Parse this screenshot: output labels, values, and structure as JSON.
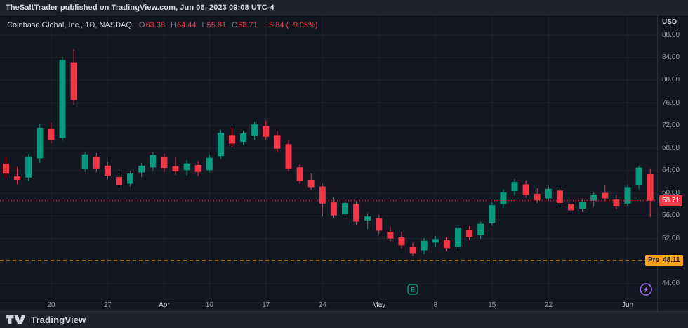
{
  "topbar": {
    "text": "TheSaltTrader published on TradingView.com, Jun 06, 2023 09:08 UTC-4"
  },
  "legend": {
    "symbol": "Coinbase Global, Inc., 1D, NASDAQ",
    "o_label": "O",
    "o_value": "63.38",
    "h_label": "H",
    "h_value": "64.44",
    "l_label": "L",
    "l_value": "55.81",
    "c_label": "C",
    "c_value": "58.71",
    "change": "−5.84 (−9.05%)"
  },
  "price_axis": {
    "currency": "USD",
    "tick_labels": [
      {
        "price": 88,
        "label": "88.00"
      },
      {
        "price": 84,
        "label": "84.00"
      },
      {
        "price": 80,
        "label": "80.00"
      },
      {
        "price": 76,
        "label": "76.00"
      },
      {
        "price": 72,
        "label": "72.00"
      },
      {
        "price": 68,
        "label": "68.00"
      },
      {
        "price": 64,
        "label": "64.00"
      },
      {
        "price": 60,
        "label": "60.00"
      },
      {
        "price": 56,
        "label": "56.00"
      },
      {
        "price": 52,
        "label": "52.00"
      },
      {
        "price": 44,
        "label": "44.00"
      }
    ],
    "last_badge": {
      "value": "58.71",
      "color": "#f23645"
    },
    "pre_badge": {
      "label": "Pre",
      "value": "48.11",
      "color": "#f89e13"
    }
  },
  "time_axis": {
    "ticks": [
      {
        "i": 4,
        "label": "20",
        "major": false
      },
      {
        "i": 9,
        "label": "27",
        "major": false
      },
      {
        "i": 14,
        "label": "Apr",
        "major": true
      },
      {
        "i": 18,
        "label": "10",
        "major": false
      },
      {
        "i": 23,
        "label": "17",
        "major": false
      },
      {
        "i": 28,
        "label": "24",
        "major": false
      },
      {
        "i": 33,
        "label": "May",
        "major": true
      },
      {
        "i": 38,
        "label": "8",
        "major": false
      },
      {
        "i": 43,
        "label": "15",
        "major": false
      },
      {
        "i": 48,
        "label": "22",
        "major": false
      },
      {
        "i": 55,
        "label": "Jun",
        "major": true
      }
    ]
  },
  "markers": {
    "earnings": {
      "label": "E",
      "candle_index": 36,
      "color": "#089981"
    },
    "idea": {
      "icon": "lightning-icon",
      "candle_index": 57,
      "color": "#a970ff"
    }
  },
  "footer": {
    "brand": "TradingView"
  },
  "chart_data": {
    "type": "candlestick",
    "title": "Coinbase Global, Inc., 1D, NASDAQ",
    "ylabel": "USD",
    "ylim": [
      44,
      88
    ],
    "grid_step": 4,
    "up_color": "#089981",
    "down_color": "#f23645",
    "last_close_line": 58.71,
    "premarket_line": 48.11,
    "candles": [
      {
        "d": "14 Mar",
        "o": 65.2,
        "h": 66.4,
        "l": 62.7,
        "c": 63.5
      },
      {
        "d": "15 Mar",
        "o": 63.0,
        "h": 64.7,
        "l": 61.6,
        "c": 62.4
      },
      {
        "d": "16 Mar",
        "o": 62.8,
        "h": 67.0,
        "l": 62.2,
        "c": 66.5
      },
      {
        "d": "17 Mar",
        "o": 66.2,
        "h": 72.3,
        "l": 65.4,
        "c": 71.6
      },
      {
        "d": "20 Mar",
        "o": 71.4,
        "h": 72.5,
        "l": 68.8,
        "c": 69.4
      },
      {
        "d": "21 Mar",
        "o": 69.8,
        "h": 84.2,
        "l": 69.3,
        "c": 83.6
      },
      {
        "d": "22 Mar",
        "o": 83.2,
        "h": 85.5,
        "l": 75.6,
        "c": 76.5
      },
      {
        "d": "23 Mar",
        "o": 64.3,
        "h": 67.4,
        "l": 63.8,
        "c": 66.9
      },
      {
        "d": "24 Mar",
        "o": 66.5,
        "h": 67.1,
        "l": 63.7,
        "c": 64.4
      },
      {
        "d": "27 Mar",
        "o": 64.9,
        "h": 65.6,
        "l": 62.5,
        "c": 63.1
      },
      {
        "d": "28 Mar",
        "o": 62.9,
        "h": 63.6,
        "l": 60.8,
        "c": 61.4
      },
      {
        "d": "29 Mar",
        "o": 61.7,
        "h": 64.0,
        "l": 61.2,
        "c": 63.5
      },
      {
        "d": "30 Mar",
        "o": 63.7,
        "h": 65.4,
        "l": 62.9,
        "c": 64.9
      },
      {
        "d": "31 Mar",
        "o": 64.6,
        "h": 67.3,
        "l": 64.1,
        "c": 66.8
      },
      {
        "d": "3 Apr",
        "o": 66.4,
        "h": 67.0,
        "l": 63.8,
        "c": 64.5
      },
      {
        "d": "4 Apr",
        "o": 64.8,
        "h": 66.4,
        "l": 63.3,
        "c": 63.9
      },
      {
        "d": "5 Apr",
        "o": 64.1,
        "h": 65.9,
        "l": 63.2,
        "c": 65.3
      },
      {
        "d": "6 Apr",
        "o": 65.0,
        "h": 65.7,
        "l": 63.1,
        "c": 63.8
      },
      {
        "d": "10 Apr",
        "o": 64.1,
        "h": 66.8,
        "l": 63.7,
        "c": 66.3
      },
      {
        "d": "11 Apr",
        "o": 66.6,
        "h": 71.2,
        "l": 66.1,
        "c": 70.7
      },
      {
        "d": "12 Apr",
        "o": 70.3,
        "h": 71.6,
        "l": 68.2,
        "c": 68.8
      },
      {
        "d": "13 Apr",
        "o": 69.1,
        "h": 71.1,
        "l": 68.5,
        "c": 70.6
      },
      {
        "d": "14 Apr",
        "o": 70.2,
        "h": 72.7,
        "l": 69.5,
        "c": 72.2
      },
      {
        "d": "17 Apr",
        "o": 71.9,
        "h": 72.9,
        "l": 69.4,
        "c": 70.0
      },
      {
        "d": "18 Apr",
        "o": 70.3,
        "h": 71.0,
        "l": 67.3,
        "c": 67.9
      },
      {
        "d": "19 Apr",
        "o": 68.7,
        "h": 69.4,
        "l": 63.9,
        "c": 64.4
      },
      {
        "d": "20 Apr",
        "o": 64.6,
        "h": 65.3,
        "l": 61.7,
        "c": 62.2
      },
      {
        "d": "21 Apr",
        "o": 62.4,
        "h": 63.5,
        "l": 60.6,
        "c": 61.1
      },
      {
        "d": "24 Apr",
        "o": 61.2,
        "h": 61.7,
        "l": 55.9,
        "c": 58.2
      },
      {
        "d": "25 Apr",
        "o": 58.4,
        "h": 59.3,
        "l": 55.6,
        "c": 56.1
      },
      {
        "d": "26 Apr",
        "o": 56.3,
        "h": 58.9,
        "l": 55.8,
        "c": 58.3
      },
      {
        "d": "27 Apr",
        "o": 58.1,
        "h": 58.7,
        "l": 54.5,
        "c": 55.0
      },
      {
        "d": "28 Apr",
        "o": 55.2,
        "h": 56.5,
        "l": 53.7,
        "c": 55.9
      },
      {
        "d": "1 May",
        "o": 55.6,
        "h": 56.2,
        "l": 52.8,
        "c": 53.4
      },
      {
        "d": "2 May",
        "o": 53.2,
        "h": 54.1,
        "l": 51.5,
        "c": 52.0
      },
      {
        "d": "3 May",
        "o": 52.2,
        "h": 53.2,
        "l": 50.3,
        "c": 50.8
      },
      {
        "d": "4 May",
        "o": 50.5,
        "h": 51.3,
        "l": 48.9,
        "c": 49.4
      },
      {
        "d": "5 May",
        "o": 49.9,
        "h": 52.1,
        "l": 49.2,
        "c": 51.6
      },
      {
        "d": "8 May",
        "o": 51.3,
        "h": 52.5,
        "l": 50.5,
        "c": 51.9
      },
      {
        "d": "9 May",
        "o": 51.7,
        "h": 52.3,
        "l": 49.8,
        "c": 50.3
      },
      {
        "d": "10 May",
        "o": 50.6,
        "h": 54.3,
        "l": 50.1,
        "c": 53.8
      },
      {
        "d": "11 May",
        "o": 53.5,
        "h": 54.2,
        "l": 51.8,
        "c": 52.3
      },
      {
        "d": "12 May",
        "o": 52.6,
        "h": 55.0,
        "l": 52.0,
        "c": 54.6
      },
      {
        "d": "15 May",
        "o": 54.8,
        "h": 58.4,
        "l": 54.3,
        "c": 57.9
      },
      {
        "d": "16 May",
        "o": 58.1,
        "h": 60.7,
        "l": 57.4,
        "c": 60.2
      },
      {
        "d": "17 May",
        "o": 60.4,
        "h": 62.5,
        "l": 59.6,
        "c": 62.0
      },
      {
        "d": "18 May",
        "o": 61.6,
        "h": 62.3,
        "l": 59.2,
        "c": 59.7
      },
      {
        "d": "19 May",
        "o": 59.9,
        "h": 60.9,
        "l": 58.3,
        "c": 58.8
      },
      {
        "d": "22 May",
        "o": 59.1,
        "h": 61.3,
        "l": 58.6,
        "c": 60.8
      },
      {
        "d": "23 May",
        "o": 60.5,
        "h": 61.1,
        "l": 57.8,
        "c": 58.3
      },
      {
        "d": "24 May",
        "o": 58.1,
        "h": 58.9,
        "l": 56.5,
        "c": 57.0
      },
      {
        "d": "25 May",
        "o": 57.3,
        "h": 59.0,
        "l": 56.7,
        "c": 58.5
      },
      {
        "d": "26 May",
        "o": 58.7,
        "h": 60.3,
        "l": 57.6,
        "c": 59.8
      },
      {
        "d": "30 May",
        "o": 60.1,
        "h": 61.4,
        "l": 58.6,
        "c": 59.1
      },
      {
        "d": "31 May",
        "o": 58.9,
        "h": 59.7,
        "l": 57.2,
        "c": 57.7
      },
      {
        "d": "1 Jun",
        "o": 58.2,
        "h": 61.5,
        "l": 57.8,
        "c": 61.1
      },
      {
        "d": "2 Jun",
        "o": 61.4,
        "h": 64.9,
        "l": 60.8,
        "c": 64.55
      },
      {
        "d": "5 Jun",
        "o": 63.38,
        "h": 64.44,
        "l": 55.81,
        "c": 58.71
      }
    ]
  }
}
